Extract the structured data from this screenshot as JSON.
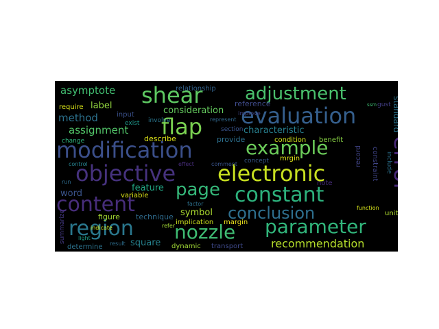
{
  "wordcloud": {
    "background": "#000000",
    "words": [
      {
        "text": "modification",
        "color": "#3b4f8a"
      },
      {
        "text": "objective",
        "color": "#46327e"
      },
      {
        "text": "electronic",
        "color": "#c8e020"
      },
      {
        "text": "shear",
        "color": "#5ec962"
      },
      {
        "text": "evaluation",
        "color": "#355f8d"
      },
      {
        "text": "adjustment",
        "color": "#4ac16d"
      },
      {
        "text": "flap",
        "color": "#7ad151"
      },
      {
        "text": "example",
        "color": "#6ccd5a"
      },
      {
        "text": "constant",
        "color": "#2db27d"
      },
      {
        "text": "error",
        "color": "#482878"
      },
      {
        "text": "content",
        "color": "#472d7b"
      },
      {
        "text": "page",
        "color": "#35b779"
      },
      {
        "text": "region",
        "color": "#2a788e"
      },
      {
        "text": "nozzle",
        "color": "#3fbc73"
      },
      {
        "text": "parameter",
        "color": "#31b57b"
      },
      {
        "text": "conclusion",
        "color": "#2e6f8e"
      },
      {
        "text": "recommendation",
        "color": "#b5de2b"
      },
      {
        "text": "asymptote",
        "color": "#42be71"
      },
      {
        "text": "method",
        "color": "#2c728e"
      },
      {
        "text": "label",
        "color": "#95d840"
      },
      {
        "text": "assignment",
        "color": "#52c569"
      },
      {
        "text": "consideration",
        "color": "#65cb5e"
      },
      {
        "text": "characteristic",
        "color": "#277f8e"
      },
      {
        "text": "standard",
        "color": "#2b748e"
      },
      {
        "text": "relationship",
        "color": "#33628d"
      },
      {
        "text": "reference",
        "color": "#3e4a89"
      },
      {
        "text": "feature",
        "color": "#22a785"
      },
      {
        "text": "word",
        "color": "#3a548c"
      },
      {
        "text": "symbol",
        "color": "#addc30"
      },
      {
        "text": "square",
        "color": "#26828e"
      },
      {
        "text": "dynamic",
        "color": "#a2da37"
      },
      {
        "text": "transport",
        "color": "#3e4989"
      },
      {
        "text": "implication",
        "color": "#cde11d"
      },
      {
        "text": "figure",
        "color": "#a8db34"
      },
      {
        "text": "technique",
        "color": "#2f6c8e"
      },
      {
        "text": "variable",
        "color": "#dde318"
      },
      {
        "text": "summarize",
        "color": "#443983"
      },
      {
        "text": "determine",
        "color": "#2c738e"
      },
      {
        "text": "condition",
        "color": "#d2e21b"
      },
      {
        "text": "benefit",
        "color": "#8bd646"
      },
      {
        "text": "note",
        "color": "#472c7a"
      },
      {
        "text": "record",
        "color": "#414487"
      },
      {
        "text": "constraint",
        "color": "#404588"
      },
      {
        "text": "include",
        "color": "#2c718e"
      },
      {
        "text": "unit",
        "color": "#b0dd2f"
      },
      {
        "text": "function",
        "color": "#d5e21a"
      },
      {
        "text": "require",
        "color": "#d8e219"
      },
      {
        "text": "input",
        "color": "#3b518b"
      },
      {
        "text": "exist",
        "color": "#1f988b"
      },
      {
        "text": "involve",
        "color": "#2a768e"
      },
      {
        "text": "change",
        "color": "#2fb47c"
      },
      {
        "text": "describe",
        "color": "#dde318"
      },
      {
        "text": "provide",
        "color": "#2d708e"
      },
      {
        "text": "section",
        "color": "#3a548c"
      },
      {
        "text": "represent",
        "color": "#31688e"
      },
      {
        "text": "improve",
        "color": "#404588"
      },
      {
        "text": "concept",
        "color": "#38588c"
      },
      {
        "text": "margin",
        "color": "#f1e51d"
      },
      {
        "text": "factor",
        "color": "#2d718e"
      },
      {
        "text": "refer",
        "color": "#a5db36"
      },
      {
        "text": "indicate",
        "color": "#cae11f"
      },
      {
        "text": "result",
        "color": "#2e6e8e"
      },
      {
        "text": "control",
        "color": "#26828e"
      },
      {
        "text": "run",
        "color": "#2f6c8e"
      },
      {
        "text": "light",
        "color": "#1f9e89"
      },
      {
        "text": "comment",
        "color": "#3a548c"
      },
      {
        "text": "effect",
        "color": "#472d7b"
      },
      {
        "text": "gust",
        "color": "#433e85"
      },
      {
        "text": "ssm",
        "color": "#3fbc73"
      },
      {
        "text": "mrgin",
        "color": "#dde318"
      }
    ]
  }
}
